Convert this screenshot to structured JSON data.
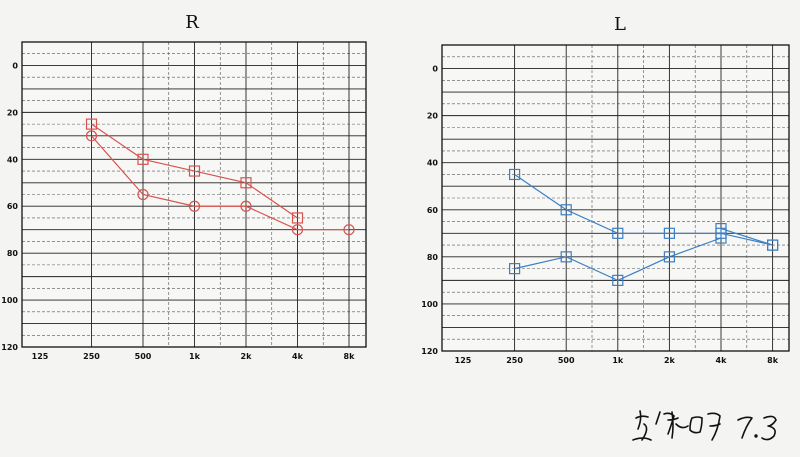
{
  "chart_data": [
    {
      "type": "line",
      "title": "R",
      "x_categories": [
        "125",
        "250",
        "500",
        "1k",
        "2k",
        "4k",
        "8k"
      ],
      "y_ticks": [
        0,
        20,
        40,
        60,
        80,
        100,
        120
      ],
      "ylim": [
        120,
        -10
      ],
      "y_inverted": true,
      "grid": true,
      "color": "#d9534f",
      "series": [
        {
          "marker": "square",
          "points": [
            {
              "x": "250",
              "y": 25
            },
            {
              "x": "500",
              "y": 40
            },
            {
              "x": "1k",
              "y": 45
            },
            {
              "x": "2k",
              "y": 50
            },
            {
              "x": "4k",
              "y": 65
            }
          ]
        },
        {
          "marker": "circle",
          "points": [
            {
              "x": "250",
              "y": 30
            },
            {
              "x": "500",
              "y": 55
            },
            {
              "x": "1k",
              "y": 60
            },
            {
              "x": "2k",
              "y": 60
            },
            {
              "x": "4k",
              "y": 70
            },
            {
              "x": "8k",
              "y": 70
            }
          ]
        }
      ]
    },
    {
      "type": "line",
      "title": "L",
      "x_categories": [
        "125",
        "250",
        "500",
        "1k",
        "2k",
        "4k",
        "8k"
      ],
      "y_ticks": [
        0,
        20,
        40,
        60,
        80,
        100,
        120
      ],
      "ylim": [
        120,
        -10
      ],
      "y_inverted": true,
      "grid": true,
      "color": "#3b7fc4",
      "series": [
        {
          "marker": "square",
          "points": [
            {
              "x": "250",
              "y": 45
            },
            {
              "x": "500",
              "y": 60
            },
            {
              "x": "1k",
              "y": 70
            },
            {
              "x": "2k",
              "y": 70
            },
            {
              "x": "4k",
              "y": 70
            },
            {
              "x": "8k",
              "y": 75
            }
          ]
        },
        {
          "marker": "square",
          "points": [
            {
              "x": "250",
              "y": 85
            },
            {
              "x": "500",
              "y": 80
            },
            {
              "x": "1k",
              "y": 90
            },
            {
              "x": "2k",
              "y": 80
            },
            {
              "x": "4k",
              "y": 72
            },
            {
              "x": "4k",
              "y": 68
            },
            {
              "x": "8k",
              "y": 75
            }
          ]
        }
      ]
    }
  ],
  "signature": {
    "text": "高洪明 7.3",
    "color": "#111111"
  }
}
